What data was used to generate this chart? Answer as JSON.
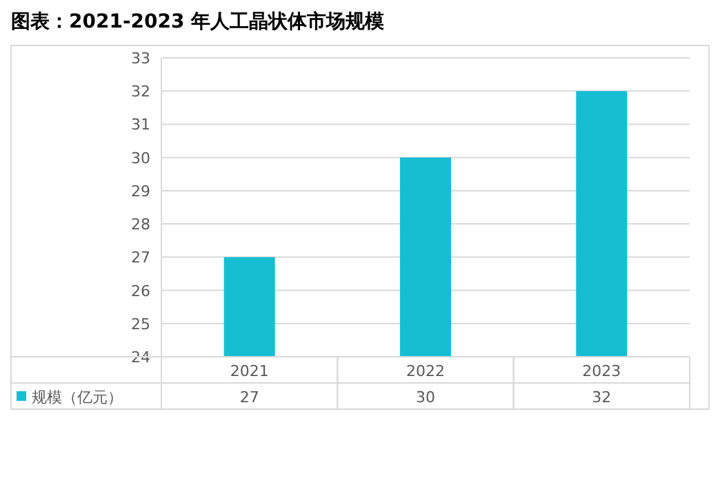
{
  "chart_data": {
    "type": "bar",
    "title": "图表：2021-2023 年人工晶状体市场规模",
    "categories": [
      "2021",
      "2022",
      "2023"
    ],
    "series": [
      {
        "name": "规模（亿元）",
        "color": "#17bed2",
        "values": [
          27,
          30,
          32
        ]
      }
    ],
    "ylim": [
      24,
      33
    ],
    "yticks": [
      24,
      25,
      26,
      27,
      28,
      29,
      30,
      31,
      32,
      33
    ],
    "grid": "y",
    "legend": "bottom",
    "data_labels": true
  }
}
